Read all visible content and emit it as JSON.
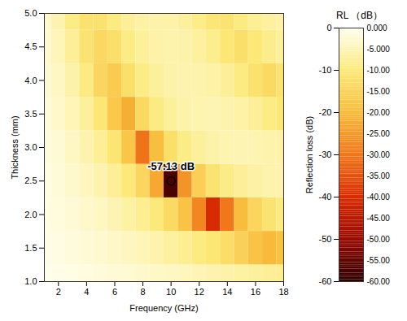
{
  "chart_data": {
    "type": "heatmap",
    "xlabel": "Frequency (GHz)",
    "ylabel": "Thickness (mm)",
    "x": [
      1,
      2,
      3,
      4,
      5,
      6,
      7,
      8,
      9,
      10,
      11,
      12,
      13,
      14,
      15,
      16,
      17,
      18
    ],
    "y": [
      1.0,
      1.5,
      2.0,
      2.5,
      3.0,
      3.5,
      4.0,
      4.5,
      5.0
    ],
    "values": [
      [
        -0.5,
        -0.8,
        -1.1,
        -1.4,
        -1.8,
        -2.2,
        -2.6,
        -3.0,
        -3.5,
        -4.0,
        -4.5,
        -5.0,
        -5.6,
        -6.1,
        -6.6,
        -7.1,
        -7.6,
        -8.0
      ],
      [
        -0.8,
        -1.2,
        -1.7,
        -2.2,
        -2.8,
        -3.4,
        -4.1,
        -4.9,
        -5.8,
        -6.8,
        -8.0,
        -9.4,
        -11.0,
        -13.0,
        -15.5,
        -18.5,
        -20.5,
        -19.0
      ],
      [
        -1.0,
        -1.6,
        -2.3,
        -3.1,
        -4.0,
        -5.1,
        -6.4,
        -8.0,
        -10.2,
        -13.5,
        -18.5,
        -28.0,
        -40.5,
        -30.0,
        -20.0,
        -14.5,
        -11.5,
        -9.5
      ],
      [
        -1.3,
        -2.0,
        -3.0,
        -4.2,
        -5.7,
        -7.6,
        -10.2,
        -14.5,
        -23.0,
        -57.13,
        -26.0,
        -16.0,
        -11.5,
        -9.0,
        -7.5,
        -6.5,
        -5.8,
        -5.5
      ],
      [
        -1.6,
        -2.5,
        -3.8,
        -5.5,
        -7.8,
        -11.2,
        -18.0,
        -30.5,
        -19.5,
        -12.5,
        -9.0,
        -7.0,
        -6.0,
        -5.4,
        -5.2,
        -5.3,
        -5.7,
        -6.3
      ],
      [
        -1.9,
        -3.1,
        -4.8,
        -7.2,
        -11.0,
        -17.5,
        -22.0,
        -14.0,
        -9.5,
        -7.2,
        -6.0,
        -5.4,
        -5.3,
        -5.6,
        -6.3,
        -7.5,
        -9.2,
        -11.0
      ],
      [
        -2.3,
        -3.8,
        -6.0,
        -9.5,
        -14.5,
        -17.0,
        -12.5,
        -9.0,
        -7.0,
        -6.0,
        -5.6,
        -5.7,
        -6.3,
        -7.5,
        -9.5,
        -12.0,
        -13.5,
        -11.5
      ],
      [
        -2.7,
        -4.6,
        -7.5,
        -11.5,
        -14.0,
        -12.5,
        -9.0,
        -7.2,
        -6.2,
        -5.8,
        -6.0,
        -6.8,
        -8.4,
        -11.0,
        -12.5,
        -10.5,
        -8.5,
        -7.3
      ],
      [
        -3.1,
        -5.5,
        -9.0,
        -11.8,
        -12.0,
        -9.5,
        -7.5,
        -6.4,
        -6.0,
        -6.2,
        -7.0,
        -8.7,
        -10.8,
        -11.5,
        -9.5,
        -7.8,
        -6.8,
        -6.2
      ]
    ],
    "xlim": [
      1,
      18
    ],
    "xticks": [
      2,
      4,
      6,
      8,
      10,
      12,
      14,
      16,
      18
    ],
    "ylim": [
      1,
      5
    ],
    "yticks": [
      {
        "value": 1,
        "label": "1.0"
      },
      {
        "value": 1.5,
        "label": "1.5"
      },
      {
        "value": 2,
        "label": "2.0"
      },
      {
        "value": 2.5,
        "label": "2.5"
      },
      {
        "value": 3,
        "label": "3.0"
      },
      {
        "value": 3.5,
        "label": "3.5"
      },
      {
        "value": 4,
        "label": "4.0"
      },
      {
        "value": 4.5,
        "label": "4.5"
      },
      {
        "value": 5,
        "label": "5.0"
      }
    ],
    "zlabel": "Reflection loss (dB)",
    "zlim": [
      -60,
      0
    ],
    "zticks": [
      0,
      -10,
      -20,
      -30,
      -40,
      -50,
      -60
    ],
    "colorbar": {
      "title": "RL （dB）",
      "range": [
        -60,
        0
      ],
      "colors": [
        "#2b0000",
        "#9a0a00",
        "#d92c00",
        "#f0781a",
        "#f8bd3c",
        "#fcea7a",
        "#fffff0"
      ],
      "ticks": [
        {
          "value": 0,
          "label": "0.000"
        },
        {
          "value": -5,
          "label": "-5.000"
        },
        {
          "value": -10,
          "label": "-10.00"
        },
        {
          "value": -15,
          "label": "-15.00"
        },
        {
          "value": -20,
          "label": "-20.00"
        },
        {
          "value": -25,
          "label": "-25.00"
        },
        {
          "value": -30,
          "label": "-30.00"
        },
        {
          "value": -35,
          "label": "-35.00"
        },
        {
          "value": -40,
          "label": "-40.00"
        },
        {
          "value": -45,
          "label": "-45.00"
        },
        {
          "value": -50,
          "label": "-50.00"
        },
        {
          "value": -55,
          "label": "-55.00"
        },
        {
          "value": -60,
          "label": "-60.00"
        }
      ]
    },
    "annotations": [
      {
        "text": "-57.13 dB",
        "x": 10,
        "y": 2.5
      }
    ]
  }
}
